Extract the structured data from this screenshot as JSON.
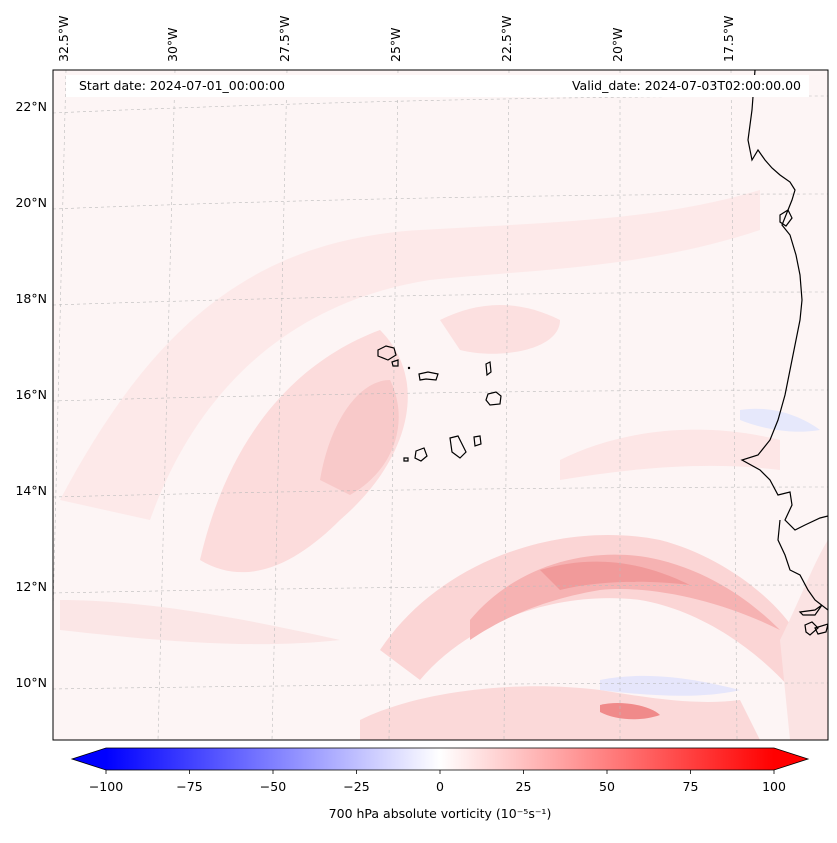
{
  "header": {
    "start_date": "Start date: 2024-07-01_00:00:00",
    "valid_date": "Valid_date: 2024-07-03T02:00:00.00"
  },
  "map": {
    "lon_labels": [
      "32.5°W",
      "30°W",
      "27.5°W",
      "25°W",
      "22.5°W",
      "20°W",
      "17.5°W"
    ],
    "lat_labels": [
      "22°N",
      "20°N",
      "18°N",
      "16°N",
      "14°N",
      "12°N",
      "10°N"
    ],
    "field": "700 hPa absolute vorticity",
    "gridlines": true
  },
  "colorbar": {
    "title": "700 hPa absolute vorticity (10⁻⁵s⁻¹)",
    "ticks": [
      "−100",
      "−75",
      "−50",
      "−25",
      "0",
      "25",
      "50",
      "75",
      "100"
    ],
    "range": [
      -100,
      100
    ],
    "extend": "both",
    "low_color": "#0000ff",
    "mid_color": "#ffffff",
    "high_color": "#ff0000"
  }
}
